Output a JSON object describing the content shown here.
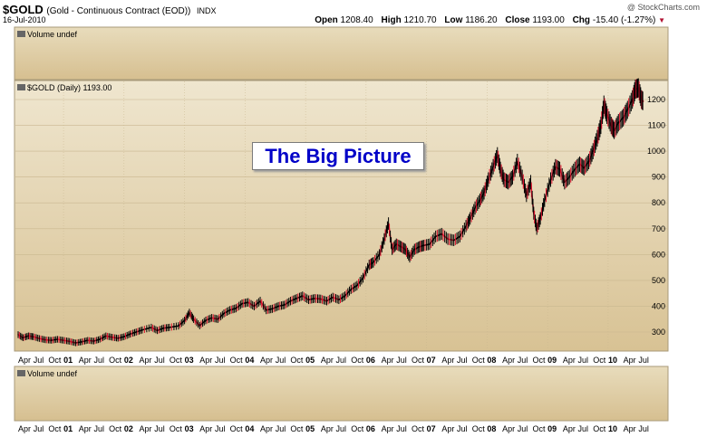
{
  "header": {
    "symbol": "$GOLD",
    "description": "(Gold - Continuous Contract (EOD))",
    "exchange": "INDX",
    "date": "16-Jul-2010",
    "brand": "@ StockCharts.com",
    "open_label": "Open",
    "open": "1208.40",
    "high_label": "High",
    "high": "1210.70",
    "low_label": "Low",
    "low": "1186.20",
    "close_label": "Close",
    "close": "1193.00",
    "chg_label": "Chg",
    "chg": "-15.40 (-1.27%)",
    "chg_arrow": "▼"
  },
  "panels": {
    "top_volume_label": "Volume undef",
    "price_label": "$GOLD (Daily) 1193.00",
    "bottom_volume_label": "Volume undef"
  },
  "annotation": {
    "text": "The Big Picture"
  },
  "colors": {
    "background_gradient_top": "#efe6cf",
    "background_gradient_bottom": "#d8c294",
    "price_up": "#000000",
    "price_down": "#e0102c",
    "gridline": "#c9b78f",
    "annotation_text": "#0000c8"
  },
  "chart_data": {
    "type": "line",
    "title": "$GOLD (Daily) 1193.00",
    "ylim": [
      230,
      1270
    ],
    "yticks": [
      300,
      400,
      500,
      600,
      700,
      800,
      900,
      1000,
      1100,
      1200
    ],
    "x_range": [
      2000.25,
      2010.6
    ],
    "x_tick_labels": [
      {
        "x": 2000.25,
        "label": "Apr"
      },
      {
        "x": 2000.5,
        "label": "Jul"
      },
      {
        "x": 2000.75,
        "label": "Oct"
      },
      {
        "x": 2001.0,
        "label": "01"
      },
      {
        "x": 2001.25,
        "label": "Apr"
      },
      {
        "x": 2001.5,
        "label": "Jul"
      },
      {
        "x": 2001.75,
        "label": "Oct"
      },
      {
        "x": 2002.0,
        "label": "02"
      },
      {
        "x": 2002.25,
        "label": "Apr"
      },
      {
        "x": 2002.5,
        "label": "Jul"
      },
      {
        "x": 2002.75,
        "label": "Oct"
      },
      {
        "x": 2003.0,
        "label": "03"
      },
      {
        "x": 2003.25,
        "label": "Apr"
      },
      {
        "x": 2003.5,
        "label": "Jul"
      },
      {
        "x": 2003.75,
        "label": "Oct"
      },
      {
        "x": 2004.0,
        "label": "04"
      },
      {
        "x": 2004.25,
        "label": "Apr"
      },
      {
        "x": 2004.5,
        "label": "Jul"
      },
      {
        "x": 2004.75,
        "label": "Oct"
      },
      {
        "x": 2005.0,
        "label": "05"
      },
      {
        "x": 2005.25,
        "label": "Apr"
      },
      {
        "x": 2005.5,
        "label": "Jul"
      },
      {
        "x": 2005.75,
        "label": "Oct"
      },
      {
        "x": 2006.0,
        "label": "06"
      },
      {
        "x": 2006.25,
        "label": "Apr"
      },
      {
        "x": 2006.5,
        "label": "Jul"
      },
      {
        "x": 2006.75,
        "label": "Oct"
      },
      {
        "x": 2007.0,
        "label": "07"
      },
      {
        "x": 2007.25,
        "label": "Apr"
      },
      {
        "x": 2007.5,
        "label": "Jul"
      },
      {
        "x": 2007.75,
        "label": "Oct"
      },
      {
        "x": 2008.0,
        "label": "08"
      },
      {
        "x": 2008.25,
        "label": "Apr"
      },
      {
        "x": 2008.5,
        "label": "Jul"
      },
      {
        "x": 2008.75,
        "label": "Oct"
      },
      {
        "x": 2009.0,
        "label": "09"
      },
      {
        "x": 2009.25,
        "label": "Apr"
      },
      {
        "x": 2009.5,
        "label": "Jul"
      },
      {
        "x": 2009.75,
        "label": "Oct"
      },
      {
        "x": 2010.0,
        "label": "10"
      },
      {
        "x": 2010.25,
        "label": "Apr"
      },
      {
        "x": 2010.5,
        "label": "Jul"
      }
    ],
    "series": [
      {
        "values": [
          [
            2000.25,
            290
          ],
          [
            2000.33,
            278
          ],
          [
            2000.42,
            285
          ],
          [
            2000.5,
            282
          ],
          [
            2000.6,
            275
          ],
          [
            2000.7,
            270
          ],
          [
            2000.8,
            268
          ],
          [
            2000.9,
            272
          ],
          [
            2001.0,
            268
          ],
          [
            2001.1,
            264
          ],
          [
            2001.2,
            258
          ],
          [
            2001.3,
            262
          ],
          [
            2001.4,
            268
          ],
          [
            2001.5,
            265
          ],
          [
            2001.6,
            272
          ],
          [
            2001.7,
            285
          ],
          [
            2001.8,
            280
          ],
          [
            2001.9,
            276
          ],
          [
            2002.0,
            282
          ],
          [
            2002.1,
            292
          ],
          [
            2002.2,
            300
          ],
          [
            2002.3,
            308
          ],
          [
            2002.45,
            318
          ],
          [
            2002.55,
            306
          ],
          [
            2002.65,
            315
          ],
          [
            2002.75,
            318
          ],
          [
            2002.9,
            324
          ],
          [
            2003.0,
            345
          ],
          [
            2003.08,
            375
          ],
          [
            2003.15,
            350
          ],
          [
            2003.25,
            325
          ],
          [
            2003.35,
            345
          ],
          [
            2003.45,
            355
          ],
          [
            2003.55,
            350
          ],
          [
            2003.65,
            372
          ],
          [
            2003.75,
            385
          ],
          [
            2003.85,
            392
          ],
          [
            2003.95,
            410
          ],
          [
            2004.05,
            415
          ],
          [
            2004.15,
            400
          ],
          [
            2004.25,
            420
          ],
          [
            2004.35,
            385
          ],
          [
            2004.45,
            390
          ],
          [
            2004.55,
            400
          ],
          [
            2004.65,
            405
          ],
          [
            2004.75,
            420
          ],
          [
            2004.85,
            430
          ],
          [
            2004.95,
            440
          ],
          [
            2005.05,
            425
          ],
          [
            2005.15,
            430
          ],
          [
            2005.25,
            428
          ],
          [
            2005.35,
            420
          ],
          [
            2005.45,
            435
          ],
          [
            2005.55,
            425
          ],
          [
            2005.65,
            440
          ],
          [
            2005.75,
            465
          ],
          [
            2005.85,
            480
          ],
          [
            2005.95,
            510
          ],
          [
            2006.05,
            560
          ],
          [
            2006.12,
            570
          ],
          [
            2006.22,
            600
          ],
          [
            2006.3,
            660
          ],
          [
            2006.37,
            720
          ],
          [
            2006.43,
            620
          ],
          [
            2006.5,
            640
          ],
          [
            2006.58,
            630
          ],
          [
            2006.65,
            620
          ],
          [
            2006.72,
            590
          ],
          [
            2006.8,
            620
          ],
          [
            2006.88,
            630
          ],
          [
            2006.95,
            635
          ],
          [
            2007.05,
            640
          ],
          [
            2007.15,
            670
          ],
          [
            2007.25,
            680
          ],
          [
            2007.35,
            660
          ],
          [
            2007.45,
            655
          ],
          [
            2007.55,
            670
          ],
          [
            2007.65,
            710
          ],
          [
            2007.72,
            740
          ],
          [
            2007.8,
            780
          ],
          [
            2007.88,
            810
          ],
          [
            2007.95,
            840
          ],
          [
            2008.02,
            890
          ],
          [
            2008.1,
            940
          ],
          [
            2008.17,
            985
          ],
          [
            2008.22,
            930
          ],
          [
            2008.28,
            890
          ],
          [
            2008.35,
            880
          ],
          [
            2008.42,
            900
          ],
          [
            2008.5,
            960
          ],
          [
            2008.58,
            900
          ],
          [
            2008.65,
            830
          ],
          [
            2008.72,
            880
          ],
          [
            2008.77,
            760
          ],
          [
            2008.82,
            700
          ],
          [
            2008.88,
            740
          ],
          [
            2008.95,
            810
          ],
          [
            2009.05,
            890
          ],
          [
            2009.13,
            940
          ],
          [
            2009.2,
            930
          ],
          [
            2009.28,
            880
          ],
          [
            2009.36,
            900
          ],
          [
            2009.45,
            930
          ],
          [
            2009.53,
            950
          ],
          [
            2009.6,
            935
          ],
          [
            2009.68,
            960
          ],
          [
            2009.75,
            1000
          ],
          [
            2009.82,
            1050
          ],
          [
            2009.88,
            1100
          ],
          [
            2009.93,
            1180
          ],
          [
            2009.98,
            1140
          ],
          [
            2010.05,
            1100
          ],
          [
            2010.1,
            1080
          ],
          [
            2010.17,
            1110
          ],
          [
            2010.25,
            1130
          ],
          [
            2010.32,
            1160
          ],
          [
            2010.4,
            1200
          ],
          [
            2010.45,
            1240
          ],
          [
            2010.5,
            1245
          ],
          [
            2010.55,
            1200
          ],
          [
            2010.58,
            1193
          ]
        ]
      }
    ]
  }
}
